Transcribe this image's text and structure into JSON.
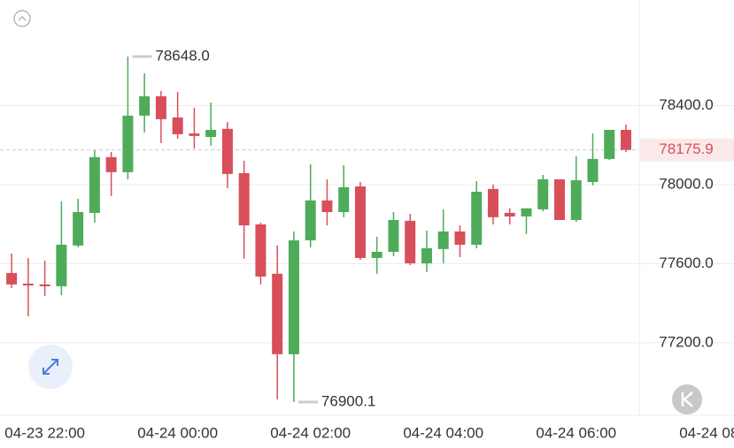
{
  "chart_data": {
    "type": "candlestick",
    "open": [
      77553,
      77499,
      77495,
      77486,
      77692,
      77857,
      78139,
      78063,
      78349,
      78447,
      78340,
      78259,
      78241,
      78282,
      78058,
      77799,
      77549,
      77142,
      77718,
      77920,
      77861,
      77991,
      77629,
      77660,
      77817,
      77602,
      77674,
      77763,
      77696,
      77978,
      77857,
      77839,
      77875,
      78027,
      77821,
      78013,
      78130,
      78277
    ],
    "high": [
      77651,
      77629,
      77616,
      77915,
      77928,
      78174,
      78165,
      78648,
      78563,
      78474,
      78469,
      78389,
      78416,
      78317,
      78121,
      77808,
      77692,
      77763,
      78103,
      78027,
      78098,
      78013,
      77736,
      77861,
      77852,
      77768,
      77875,
      77794,
      78018,
      78000,
      77880,
      77880,
      78049,
      78027,
      78143,
      78259,
      78277,
      78304
    ],
    "low": [
      77477,
      77334,
      77437,
      77441,
      77683,
      77808,
      77942,
      78027,
      78264,
      78210,
      78232,
      78183,
      78197,
      77982,
      77625,
      77495,
      76913,
      76900.1,
      77683,
      77794,
      77835,
      77620,
      77549,
      77638,
      77593,
      77557,
      77602,
      77633,
      77678,
      77799,
      77799,
      77750,
      77866,
      77821,
      77812,
      77996,
      78125,
      78165
    ],
    "close": [
      77495,
      77490,
      77486,
      77696,
      77861,
      78139,
      78063,
      78349,
      78447,
      78331,
      78255,
      78246,
      78277,
      78054,
      77794,
      77535,
      77142,
      77718,
      77920,
      77861,
      77987,
      77629,
      77660,
      77821,
      77602,
      77678,
      77763,
      77696,
      77964,
      77835,
      77839,
      77880,
      78027,
      77821,
      78022,
      78130,
      78277,
      78175.9
    ],
    "up_color": "#4eab59",
    "down_color": "#d84f5a",
    "xlim": [
      -0.7,
      37.8
    ],
    "xticks": [
      {
        "value": 2,
        "label": "04-23 22:00"
      },
      {
        "value": 10,
        "label": "04-24 00:00"
      },
      {
        "value": 18,
        "label": "04-24 02:00"
      },
      {
        "value": 26,
        "label": "04-24 04:00"
      },
      {
        "value": 34,
        "label": "04-24 06:00"
      },
      {
        "value": 42,
        "label": "04-24 08"
      }
    ],
    "ylim": [
      76833,
      78934
    ],
    "yticks": [
      {
        "value": 77200,
        "label": "77200.0"
      },
      {
        "value": 77600,
        "label": "77600.0"
      },
      {
        "value": 78000,
        "label": "78000.0"
      },
      {
        "value": 78400,
        "label": "78400.0"
      }
    ],
    "grid": true,
    "high_marker": {
      "value": 78648,
      "label": "78648.0"
    },
    "low_marker": {
      "value": 76900.1,
      "label": "76900.1"
    },
    "last_price": {
      "value": 78175.9,
      "label": "78175.9"
    }
  }
}
